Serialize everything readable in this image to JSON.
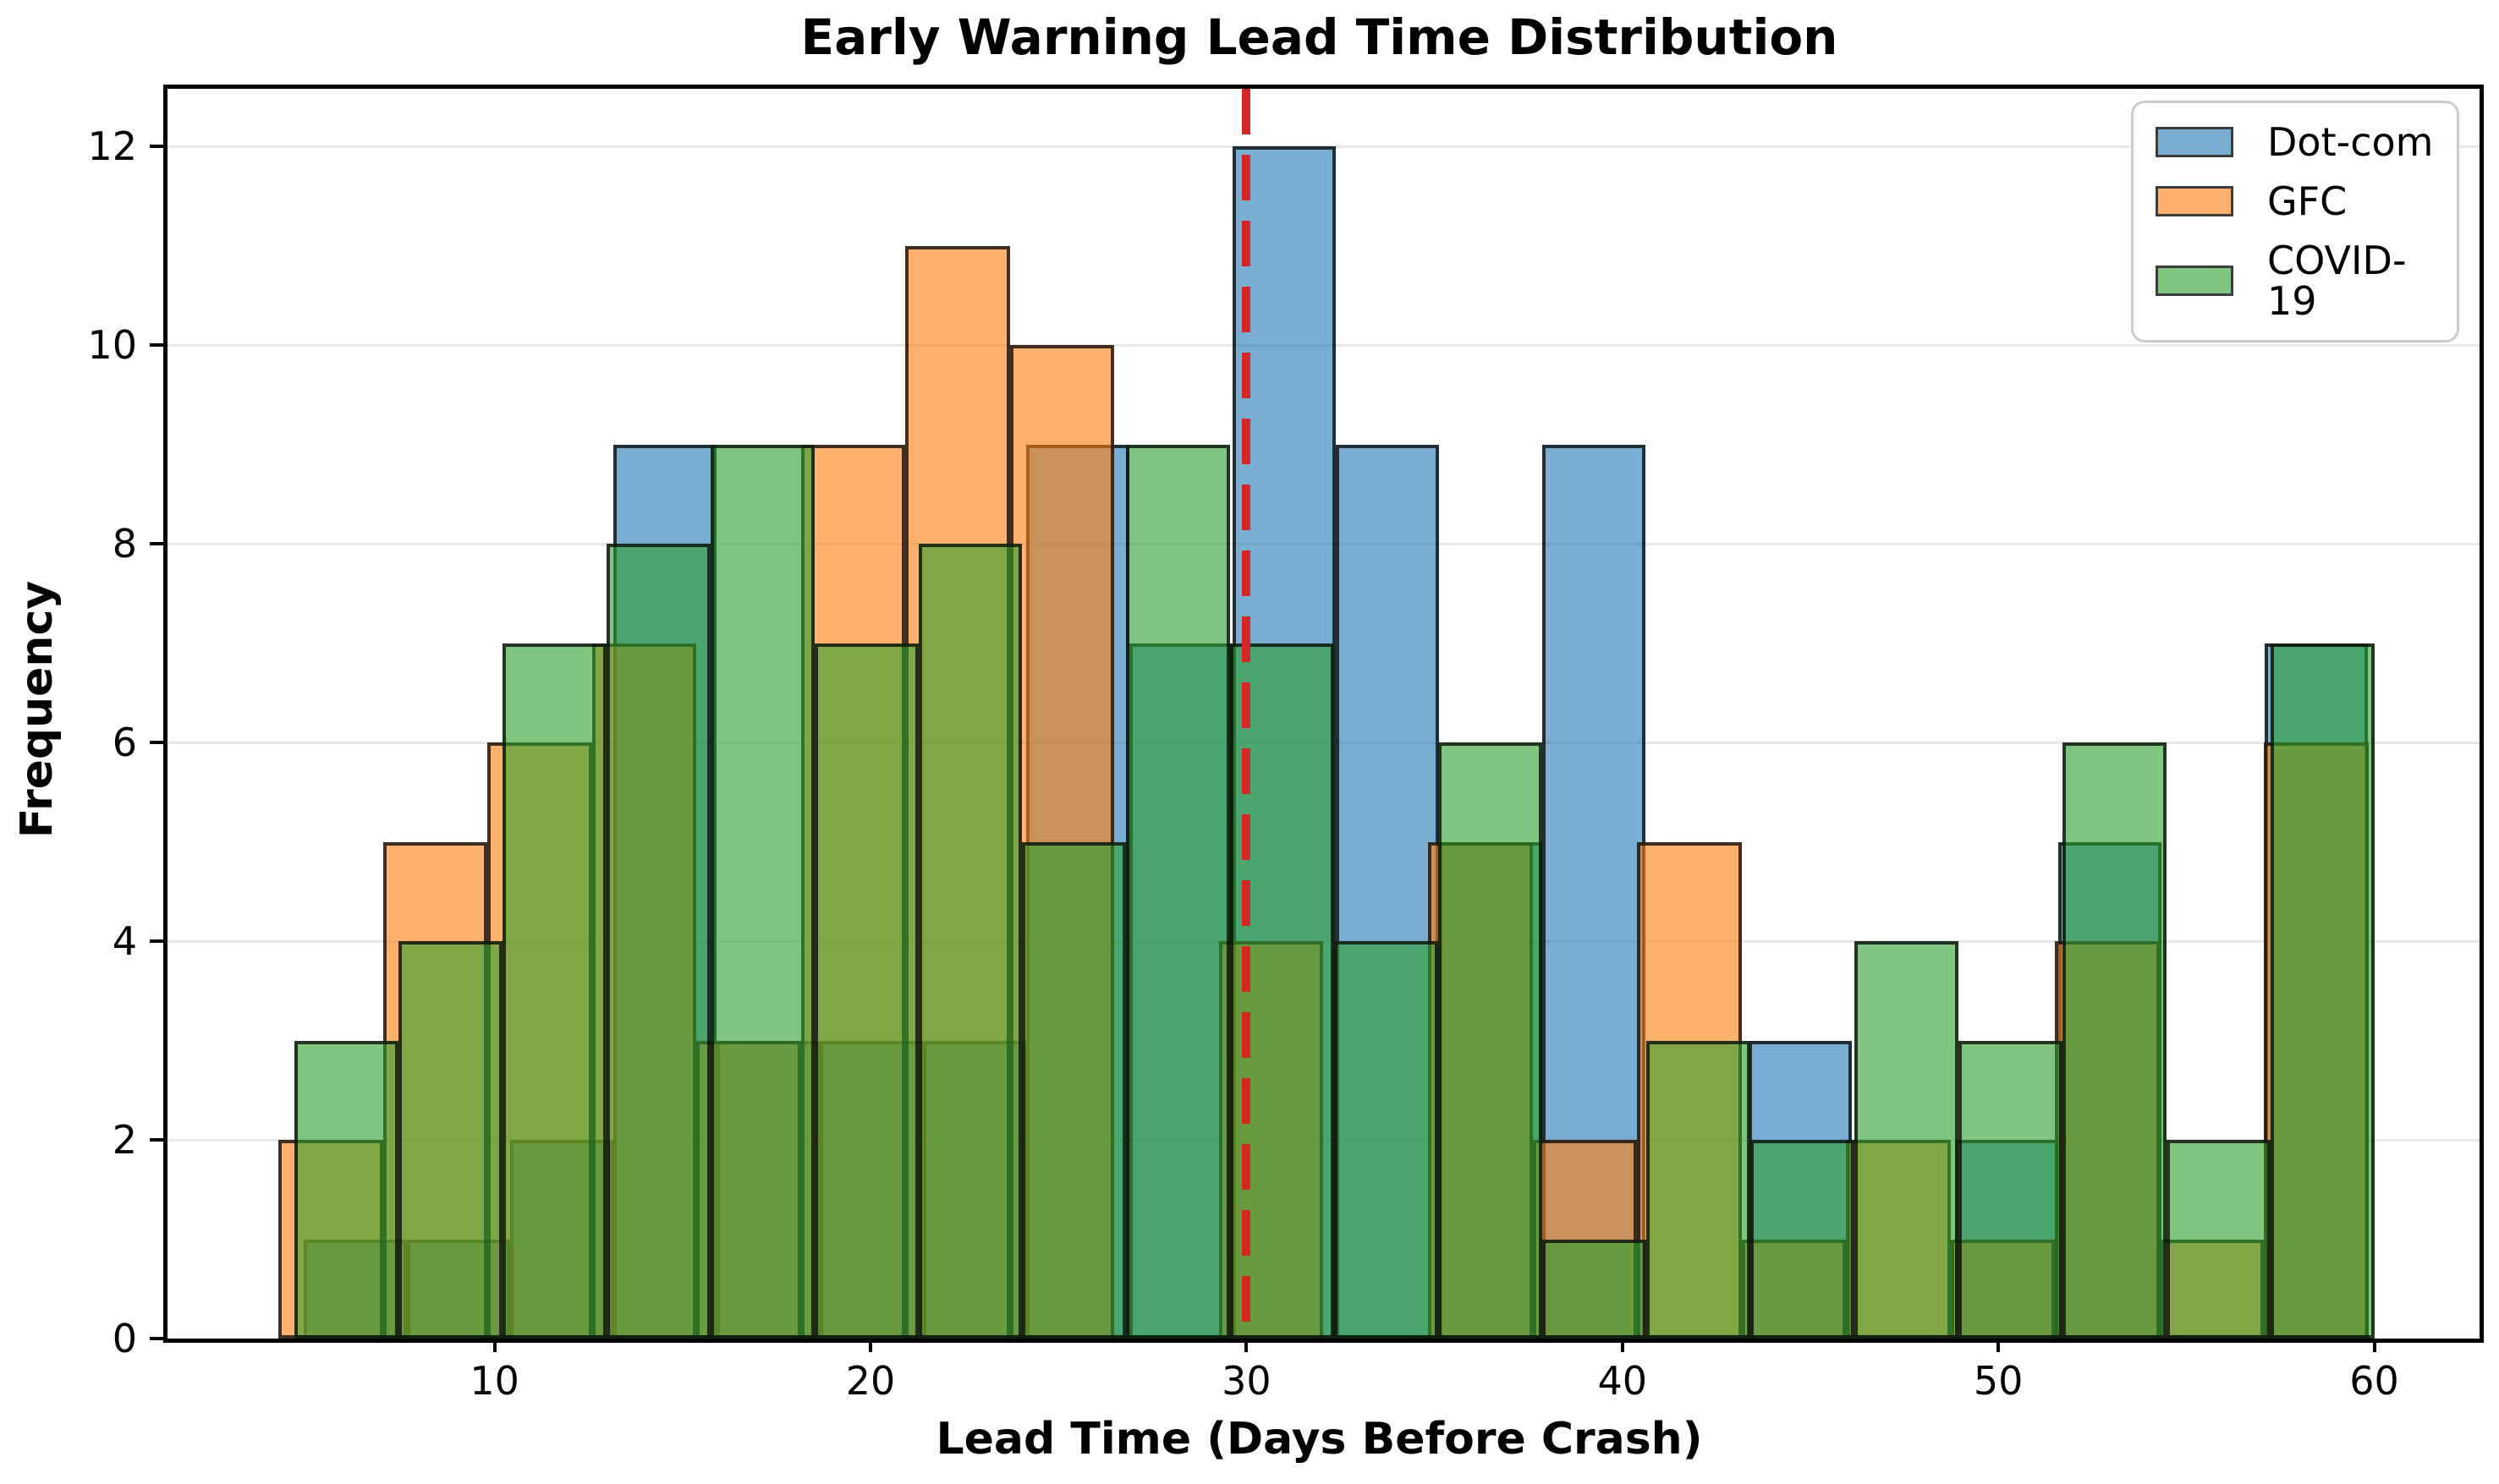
{
  "title": "Early Warning Lead Time Distribution",
  "xlabel": "Lead Time (Days Before Crash)",
  "ylabel": "Frequency",
  "x_ticks": [
    10,
    20,
    30,
    40,
    50,
    60
  ],
  "y_ticks": [
    0,
    2,
    4,
    6,
    8,
    10,
    12
  ],
  "legend": [
    {
      "label": "Dot-com",
      "color": "#1f77b4"
    },
    {
      "label": "GFC",
      "color": "#ff7f0e"
    },
    {
      "label": "COVID-19",
      "color": "#2ca02c"
    }
  ],
  "chart_data": {
    "type": "bar",
    "subtype": "overlapping-histogram",
    "title": "Early Warning Lead Time Distribution",
    "xlabel": "Lead Time (Days Before Crash)",
    "ylabel": "Frequency",
    "xlim": [
      1.3,
      62.8
    ],
    "ylim": [
      0,
      12.58
    ],
    "grid": "horizontal",
    "legend_position": "upper right",
    "bar_alpha": 0.6,
    "edge_color": "#000000",
    "series": [
      {
        "name": "Dot-com",
        "color": "#1f77b4",
        "bin_start": 4.93,
        "bin_width": 2.745,
        "counts": [
          1,
          1,
          2,
          9,
          3,
          3,
          3,
          9,
          7,
          12,
          9,
          5,
          9,
          0,
          3,
          0,
          2,
          5,
          0,
          7
        ]
      },
      {
        "name": "GFC",
        "color": "#ff7f0e",
        "bin_start": 4.25,
        "bin_width": 2.78,
        "counts": [
          2,
          5,
          6,
          7,
          3,
          9,
          11,
          10,
          0,
          4,
          0,
          5,
          2,
          5,
          1,
          2,
          1,
          4,
          1,
          6
        ]
      },
      {
        "name": "COVID-19",
        "color": "#2ca02c",
        "bin_start": 4.67,
        "bin_width": 2.767,
        "counts": [
          3,
          4,
          7,
          8,
          9,
          7,
          8,
          5,
          9,
          7,
          4,
          6,
          1,
          3,
          2,
          4,
          3,
          6,
          2,
          7
        ]
      }
    ],
    "vline": {
      "x": 30,
      "color": "#d62728",
      "linestyle": "dashed",
      "label": null
    }
  }
}
